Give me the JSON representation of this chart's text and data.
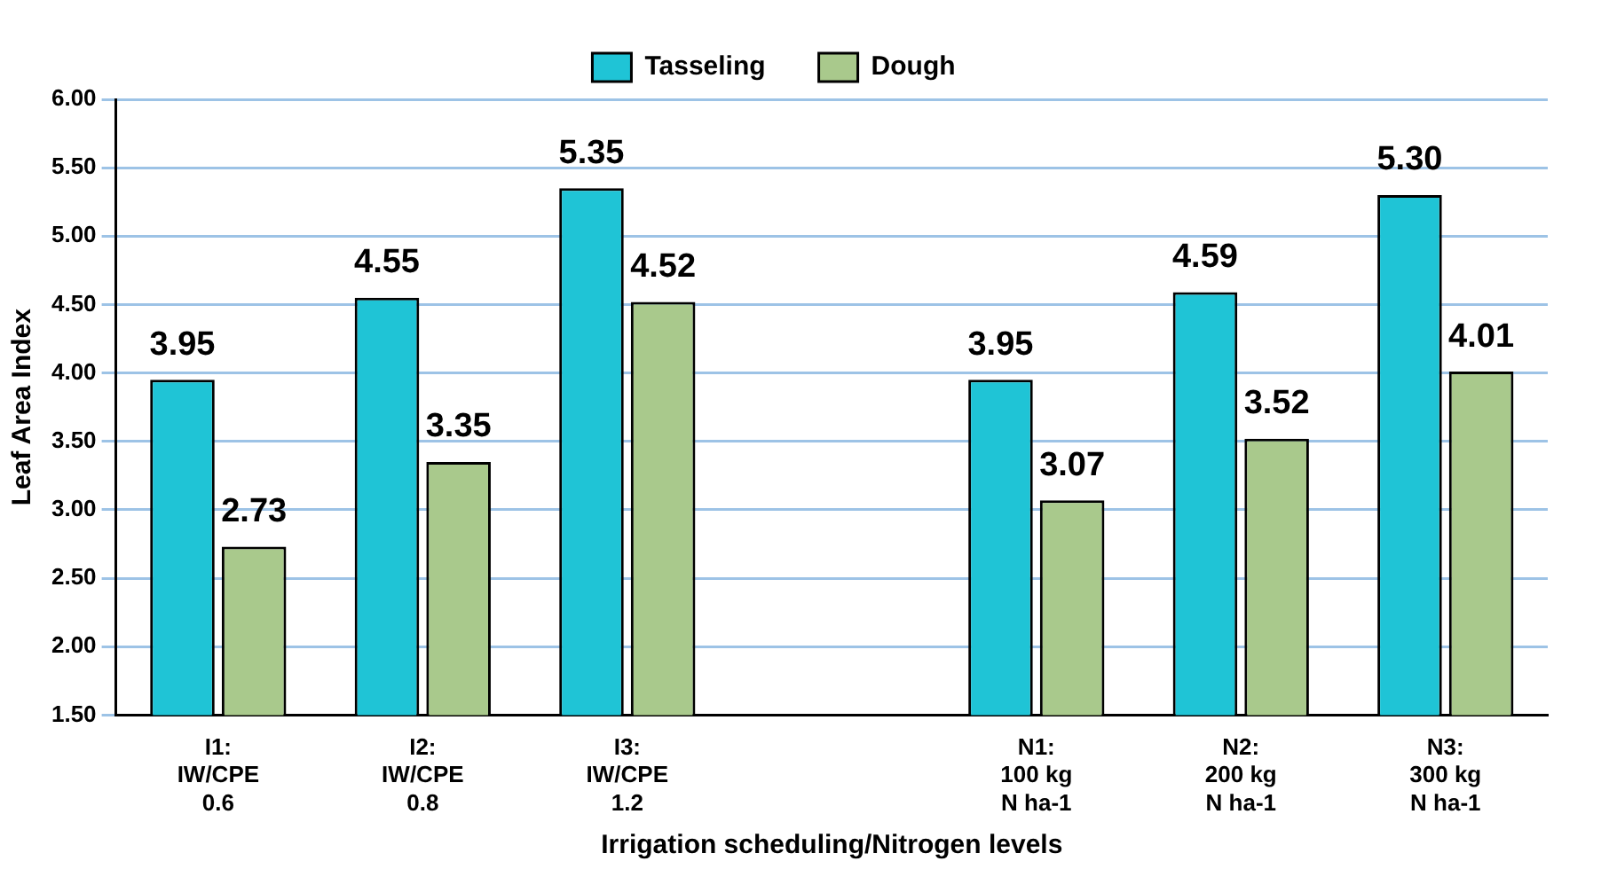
{
  "chart_data": {
    "type": "bar",
    "xlabel": "Irrigation scheduling/Nitrogen levels",
    "ylabel": "Leaf Area Index",
    "categories": [
      "I1:\nIW/CPE\n0.6",
      "I2:\nIW/CPE\n0.8",
      "I3:\nIW/CPE\n1.2",
      null,
      "N1:\n100 kg\nN ha-1",
      "N2:\n200 kg\nN ha-1",
      "N3:\n300 kg\nN ha-1"
    ],
    "series": [
      {
        "name": "Tasseling",
        "color": "#1fc4d6",
        "values": [
          3.95,
          4.55,
          5.35,
          null,
          3.95,
          4.59,
          5.3
        ],
        "value_labels": [
          "3.95",
          "4.55",
          "5.35",
          null,
          "3.95",
          "4.59",
          "5.30"
        ]
      },
      {
        "name": "Dough",
        "color": "#a9c98c",
        "values": [
          2.73,
          3.35,
          4.52,
          null,
          3.07,
          3.52,
          4.01
        ],
        "value_labels": [
          "2.73",
          "3.35",
          "4.52",
          null,
          "3.07",
          "3.52",
          "4.01"
        ]
      }
    ],
    "ylim": [
      1.5,
      6
    ],
    "yticks": [
      {
        "value": 1.5,
        "label": "1.50"
      },
      {
        "value": 2,
        "label": "2.00"
      },
      {
        "value": 2.5,
        "label": "2.50"
      },
      {
        "value": 3,
        "label": "3.00"
      },
      {
        "value": 3.5,
        "label": "3.50"
      },
      {
        "value": 4,
        "label": "4.00"
      },
      {
        "value": 4.5,
        "label": "4.50"
      },
      {
        "value": 5,
        "label": "5.00"
      },
      {
        "value": 5.5,
        "label": "5.50"
      },
      {
        "value": 6,
        "label": "6.00"
      }
    ],
    "grid": "y",
    "legend": "top"
  }
}
